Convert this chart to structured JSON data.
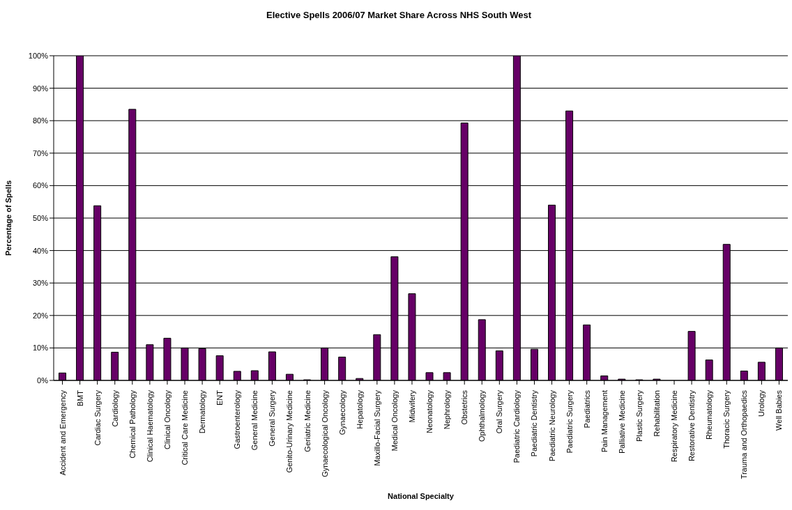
{
  "chart_data": {
    "type": "bar",
    "title": "Elective Spells 2006/07 Market Share Across NHS South West",
    "xlabel": "National Specialty",
    "ylabel": "Percentage of Spells",
    "categories": [
      "Accident and Emergency",
      "BMT",
      "Cardiac Surgery",
      "Cardiology",
      "Chemical Pathology",
      "Clinical Haematology",
      "Clinical Oncology",
      "Critical Care Medicine",
      "Dermatology",
      "ENT",
      "Gastroenterology",
      "General Medicine",
      "General Surgery",
      "Genito-Urinary Medicine",
      "Geriatric Medicine",
      "Gynaecological Oncology",
      "Gynaecology",
      "Hepatology",
      "Maxillo-Facial Surgery",
      "Medical Oncology",
      "Midwifery",
      "Neonatology",
      "Nephrology",
      "Obstetrics",
      "Ophthalmology",
      "Oral Surgery",
      "Paediatric Cardiology",
      "Paediatric Dentistry",
      "Paediatric Neurology",
      "Paediatric Surgery",
      "Paediatrics",
      "Pain Management",
      "Palliative Medicine",
      "Plastic Surgery",
      "Rehabilitation",
      "Respiratory Medicine",
      "Restorative Dentistry",
      "Rheumatology",
      "Thoracic Surgery",
      "Trauma and Orthopaedics",
      "Urology",
      "Well Babies"
    ],
    "values": [
      2.3,
      100,
      53.8,
      8.7,
      83.5,
      11,
      13,
      10,
      9.8,
      7.6,
      2.8,
      3,
      8.8,
      1.9,
      0.2,
      10,
      7.2,
      0.6,
      14.1,
      38.1,
      26.7,
      2.4,
      2.4,
      79.3,
      18.7,
      9.1,
      100,
      9.6,
      54,
      83,
      17.1,
      1.4,
      0.4,
      0.2,
      0.4,
      0,
      15.1,
      6.3,
      41.9,
      2.9,
      5.6,
      10
    ],
    "color": "#660066",
    "ylim": [
      0,
      100
    ],
    "yticks": [
      {
        "value": 0,
        "label": "0%"
      },
      {
        "value": 10,
        "label": "10%"
      },
      {
        "value": 20,
        "label": "20%"
      },
      {
        "value": 30,
        "label": "30%"
      },
      {
        "value": 40,
        "label": "40%"
      },
      {
        "value": 50,
        "label": "50%"
      },
      {
        "value": 60,
        "label": "60%"
      },
      {
        "value": 70,
        "label": "70%"
      },
      {
        "value": 80,
        "label": "80%"
      },
      {
        "value": 90,
        "label": "90%"
      },
      {
        "value": 100,
        "label": "100%"
      }
    ],
    "grid": "y"
  }
}
